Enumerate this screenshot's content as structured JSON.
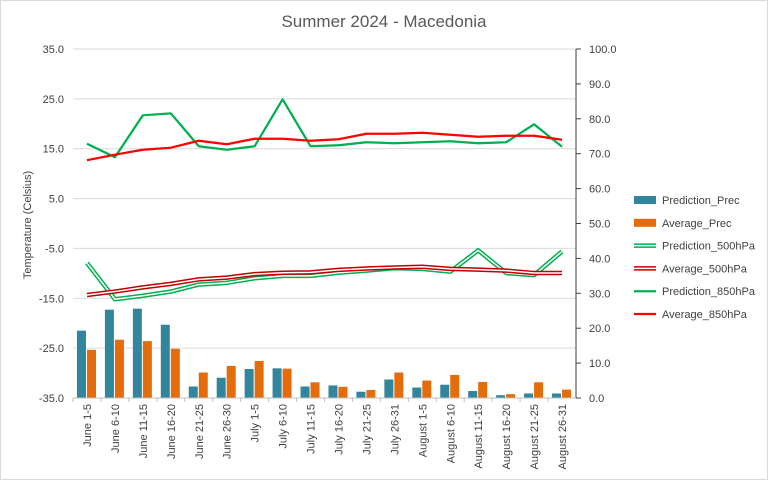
{
  "chart_data": {
    "type": "bar",
    "title": "Summer 2024 - Macedonia",
    "ylabel": "Temperature (Celsius)",
    "y2label": "",
    "ylim": [
      -35,
      35
    ],
    "yticks": [
      "35.0",
      "25.0",
      "15.0",
      "5.0",
      "-5.0",
      "-15.0",
      "-25.0",
      "-35.0"
    ],
    "y2lim": [
      0,
      100
    ],
    "y2ticks": [
      "100.0",
      "90.0",
      "80.0",
      "70.0",
      "60.0",
      "50.0",
      "40.0",
      "30.0",
      "20.0",
      "10.0",
      "0.0"
    ],
    "grid": true,
    "legend_position": "right",
    "categories": [
      "June 1-5",
      "June 6-10",
      "June 11-15",
      "June 16-20",
      "June 21-25",
      "June 26-30",
      "July 1-5",
      "July 6-10",
      "July 11-15",
      "July 16-20",
      "July 21-25",
      "July 26-31",
      "August 1-5",
      "August 6-10",
      "August 11-15",
      "August 16-20",
      "August 21-25",
      "August 26-31"
    ],
    "series": [
      {
        "name": "Prediction_Prec",
        "type": "bar",
        "axis": "secondary",
        "color": "#31859c",
        "values": [
          19.3,
          25.3,
          25.6,
          21.0,
          3.3,
          5.8,
          8.3,
          8.5,
          3.3,
          3.6,
          1.8,
          5.3,
          3.0,
          3.8,
          2.0,
          0.8,
          1.3,
          1.3
        ]
      },
      {
        "name": "Average_Prec",
        "type": "bar",
        "axis": "secondary",
        "color": "#e46c0a",
        "values": [
          13.8,
          16.7,
          16.3,
          14.1,
          7.3,
          9.2,
          10.6,
          8.4,
          4.5,
          3.2,
          2.3,
          7.3,
          5.0,
          6.6,
          4.6,
          1.1,
          4.5,
          2.4
        ]
      },
      {
        "name": "Prediction_500hPa",
        "type": "line",
        "style": "double",
        "axis": "secondary",
        "color": "#00b050",
        "values": [
          38.7,
          28.3,
          29.3,
          30.5,
          32.5,
          33.0,
          34.3,
          35.0,
          35.0,
          35.9,
          36.5,
          37.2,
          37.0,
          36.2,
          42.3,
          35.8,
          35.2,
          42.0
        ]
      },
      {
        "name": "Average_500hPa",
        "type": "line",
        "style": "double",
        "axis": "secondary",
        "color": "#c00000",
        "values": [
          29.5,
          30.5,
          31.7,
          32.7,
          34.0,
          34.5,
          35.5,
          35.9,
          36.0,
          36.7,
          37.1,
          37.4,
          37.6,
          37.0,
          36.8,
          36.5,
          35.8,
          35.8
        ]
      },
      {
        "name": "Prediction_850hPa",
        "type": "line",
        "axis": "primary",
        "color": "#00b050",
        "values": [
          16.0,
          13.3,
          21.7,
          22.1,
          15.5,
          14.8,
          15.5,
          24.9,
          15.5,
          15.7,
          16.3,
          16.1,
          16.3,
          16.5,
          16.1,
          16.3,
          19.9,
          15.4
        ]
      },
      {
        "name": "Average_850hPa",
        "type": "line",
        "axis": "primary",
        "color": "#ff0000",
        "values": [
          12.7,
          13.8,
          14.8,
          15.2,
          16.6,
          15.9,
          17.0,
          17.0,
          16.6,
          16.9,
          18.0,
          18.0,
          18.2,
          17.8,
          17.4,
          17.6,
          17.6,
          16.8
        ]
      }
    ]
  }
}
